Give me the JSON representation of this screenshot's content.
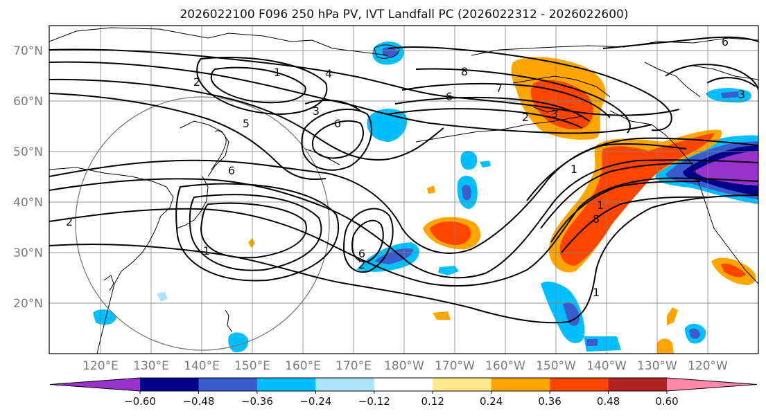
{
  "title": "2026022100 F096 250 hPa PV, IVT Landfall PC (2026022312 - 2026022600)",
  "map": {
    "lon_labels": [
      "120°E",
      "130°E",
      "140°E",
      "150°E",
      "160°E",
      "170°E",
      "180°W",
      "170°W",
      "160°W",
      "150°W",
      "140°W",
      "130°W",
      "120°W"
    ],
    "lat_labels": [
      "70°N",
      "60°N",
      "50°N",
      "40°N",
      "30°N",
      "20°N"
    ],
    "gridlines": true,
    "coastline_color": "#000000",
    "contour_color": "#000000",
    "pv_contour_labels": [
      "1",
      "2",
      "3",
      "5",
      "6",
      "7",
      "8"
    ]
  },
  "colorbar": {
    "ticks": [
      "−0.60",
      "−0.48",
      "−0.36",
      "−0.24",
      "−0.12",
      "0.12",
      "0.24",
      "0.36",
      "0.48",
      "0.60"
    ],
    "colors": [
      "#9932CC",
      "#00008B",
      "#3A5CCC",
      "#00BFFF",
      "#ADE3FA",
      "#FFFFFF",
      "#FFE98A",
      "#FFA500",
      "#FF4500",
      "#B22222",
      "#FF88AA"
    ],
    "extend": "both"
  }
}
